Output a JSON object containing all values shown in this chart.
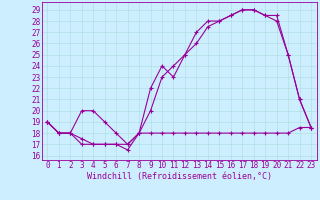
{
  "xlabel": "Windchill (Refroidissement éolien,°C)",
  "bg_color": "#cceeff",
  "line_color": "#990099",
  "grid_color": "#aadddd",
  "x_ticks": [
    0,
    1,
    2,
    3,
    4,
    5,
    6,
    7,
    8,
    9,
    10,
    11,
    12,
    13,
    14,
    15,
    16,
    17,
    18,
    19,
    20,
    21,
    22,
    23
  ],
  "y_ticks": [
    16,
    17,
    18,
    19,
    20,
    21,
    22,
    23,
    24,
    25,
    26,
    27,
    28,
    29
  ],
  "ylim": [
    15.6,
    29.7
  ],
  "xlim": [
    -0.5,
    23.5
  ],
  "line1_x": [
    0,
    1,
    2,
    3,
    4,
    5,
    6,
    7,
    8,
    9,
    10,
    11,
    12,
    13,
    14,
    15,
    16,
    17,
    18,
    19,
    20,
    21,
    22,
    23
  ],
  "line1_y": [
    19,
    18,
    18,
    17,
    17,
    17,
    17,
    16.5,
    18,
    20,
    23,
    24,
    25,
    27,
    28,
    28,
    28.5,
    29,
    29,
    28.5,
    28,
    25,
    21,
    18.5
  ],
  "line2_x": [
    0,
    1,
    2,
    3,
    4,
    5,
    6,
    7,
    8,
    9,
    10,
    11,
    12,
    13,
    14,
    15,
    16,
    17,
    18,
    19,
    20,
    21,
    22,
    23
  ],
  "line2_y": [
    19,
    18,
    18,
    17.5,
    17,
    17,
    17,
    17,
    18,
    18,
    18,
    18,
    18,
    18,
    18,
    18,
    18,
    18,
    18,
    18,
    18,
    18,
    18.5,
    18.5
  ],
  "line3_x": [
    0,
    1,
    2,
    3,
    4,
    5,
    6,
    7,
    8,
    9,
    10,
    11,
    12,
    13,
    14,
    15,
    16,
    17,
    18,
    19,
    20,
    21,
    22,
    23
  ],
  "line3_y": [
    19,
    18,
    18,
    20,
    20,
    19,
    18,
    17,
    18,
    22,
    24,
    23,
    25,
    26,
    27.5,
    28,
    28.5,
    29,
    29,
    28.5,
    28.5,
    25,
    21,
    18.5
  ],
  "tick_fontsize": 5.5,
  "xlabel_fontsize": 6.0,
  "linewidth": 0.8,
  "markersize": 3.0
}
